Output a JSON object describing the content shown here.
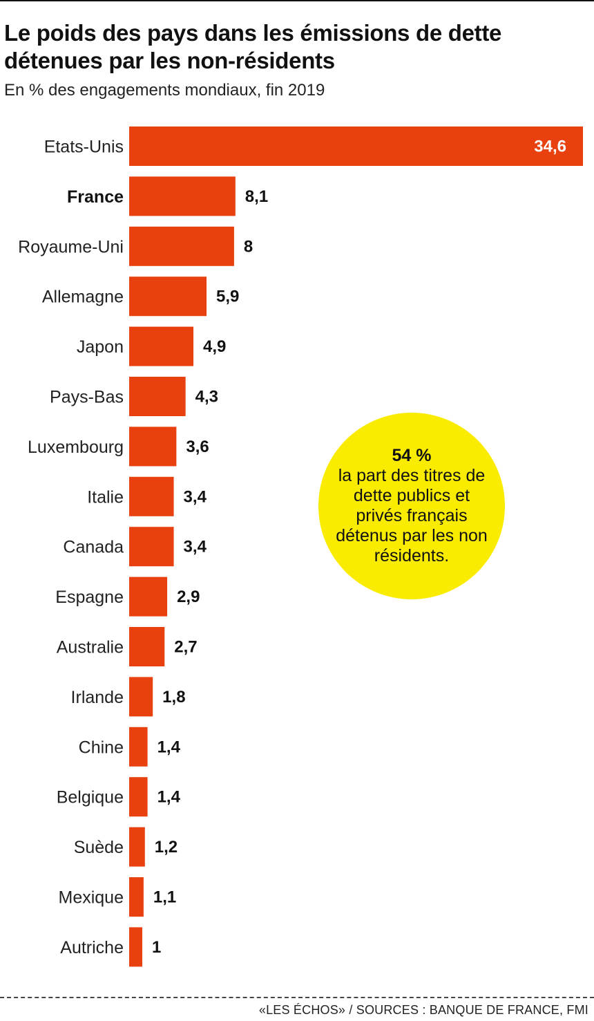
{
  "header": {
    "title": "Le poids des pays dans les émissions de dette détenues par les non-résidents",
    "subtitle": "En % des engagements mondiaux, fin 2019"
  },
  "colors": {
    "bar": "#e8410f",
    "callout_bg": "#f9ec00",
    "text": "#111111"
  },
  "chart_data": {
    "type": "bar",
    "orientation": "horizontal",
    "title": "Le poids des pays dans les émissions de dette détenues par les non-résidents",
    "subtitle": "En % des engagements mondiaux, fin 2019",
    "categories": [
      "Etats-Unis",
      "France",
      "Royaume-Uni",
      "Allemagne",
      "Japon",
      "Pays-Bas",
      "Luxembourg",
      "Italie",
      "Canada",
      "Espagne",
      "Australie",
      "Irlande",
      "Chine",
      "Belgique",
      "Suède",
      "Mexique",
      "Autriche"
    ],
    "values": [
      34.6,
      8.1,
      8,
      5.9,
      4.9,
      4.3,
      3.6,
      3.4,
      3.4,
      2.9,
      2.7,
      1.8,
      1.4,
      1.4,
      1.2,
      1.1,
      1
    ],
    "value_labels": [
      "34,6",
      "8,1",
      "8",
      "5,9",
      "4,9",
      "4,3",
      "3,6",
      "3,4",
      "3,4",
      "2,9",
      "2,7",
      "1,8",
      "1,4",
      "1,4",
      "1,2",
      "1,1",
      "1"
    ],
    "highlight_category": "France",
    "xlim": [
      0,
      34.6
    ],
    "grid": false,
    "legend": "none"
  },
  "callout": {
    "number": "54 %",
    "text": "la part des titres de dette publics et privés français détenus par les non résidents."
  },
  "footer": {
    "source": "«LES ÉCHOS» / SOURCES : BANQUE DE FRANCE, FMI"
  }
}
